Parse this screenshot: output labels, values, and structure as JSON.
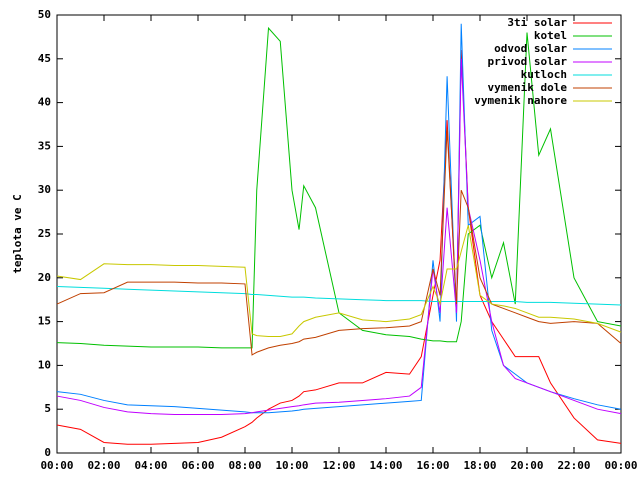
{
  "chart_data": {
    "type": "line",
    "y_label": "teplota ve C",
    "x": [
      0,
      1,
      2,
      3,
      4,
      5,
      6,
      7,
      8,
      8.3,
      8.5,
      9,
      9.5,
      10,
      10.3,
      10.5,
      11,
      12,
      13,
      14,
      15,
      15.5,
      16,
      16.3,
      16.6,
      17,
      17.2,
      17.5,
      18,
      18.5,
      19,
      19.5,
      20,
      20.5,
      21,
      22,
      23,
      24
    ],
    "xlim": [
      0,
      24
    ],
    "xticks": [
      {
        "value": 0,
        "label": "00:00"
      },
      {
        "value": 2,
        "label": "02:00"
      },
      {
        "value": 4,
        "label": "04:00"
      },
      {
        "value": 6,
        "label": "06:00"
      },
      {
        "value": 8,
        "label": "08:00"
      },
      {
        "value": 10,
        "label": "10:00"
      },
      {
        "value": 12,
        "label": "12:00"
      },
      {
        "value": 14,
        "label": "14:00"
      },
      {
        "value": 16,
        "label": "16:00"
      },
      {
        "value": 18,
        "label": "18:00"
      },
      {
        "value": 20,
        "label": "20:00"
      },
      {
        "value": 22,
        "label": "22:00"
      },
      {
        "value": 24,
        "label": "00:00"
      }
    ],
    "ylim": [
      0,
      50
    ],
    "yticks": [
      0,
      5,
      10,
      15,
      20,
      25,
      30,
      35,
      40,
      45,
      50
    ],
    "legend": "top-right",
    "series": [
      {
        "name": "3ti solar",
        "color": "#ff0000",
        "values": [
          3.2,
          2.7,
          1.2,
          1.0,
          1.0,
          1.1,
          1.2,
          1.8,
          3,
          3.5,
          4,
          5,
          5.7,
          6,
          6.5,
          7,
          7.2,
          8,
          8,
          9.2,
          9,
          11,
          18,
          22,
          38,
          16,
          46,
          28,
          18,
          15,
          13,
          11,
          11,
          11,
          8,
          4,
          1.5,
          1.1
        ]
      },
      {
        "name": "kotel",
        "color": "#00c000",
        "values": [
          12.6,
          12.5,
          12.3,
          12.2,
          12.1,
          12.1,
          12.1,
          12.0,
          12.0,
          12,
          30,
          48.5,
          47,
          30,
          25.5,
          30.5,
          28,
          16,
          14,
          13.5,
          13.3,
          13,
          12.8,
          12.8,
          12.7,
          12.7,
          15,
          25,
          26,
          20,
          24,
          17,
          48,
          34,
          37,
          20,
          15,
          14.5
        ]
      },
      {
        "name": "odvod solar",
        "color": "#0080ff",
        "values": [
          7,
          6.7,
          6,
          5.5,
          5.4,
          5.3,
          5.1,
          4.9,
          4.7,
          4.6,
          4.6,
          4.6,
          4.7,
          4.8,
          4.9,
          5,
          5.1,
          5.3,
          5.5,
          5.7,
          5.9,
          6,
          22,
          15,
          43,
          15,
          49,
          26,
          27,
          14,
          10,
          9,
          8,
          7.5,
          7,
          6.2,
          5.5,
          5
        ]
      },
      {
        "name": "privod solar",
        "color": "#c000ff",
        "values": [
          6.5,
          6,
          5.2,
          4.7,
          4.5,
          4.4,
          4.4,
          4.4,
          4.5,
          4.6,
          4.7,
          4.9,
          5.1,
          5.3,
          5.4,
          5.5,
          5.7,
          5.8,
          6,
          6.2,
          6.5,
          7.5,
          21,
          16,
          28,
          16,
          45,
          28,
          22,
          15,
          10,
          8.5,
          8,
          7.5,
          7,
          6,
          5,
          4.5
        ]
      },
      {
        "name": "kutloch",
        "color": "#00dddd",
        "values": [
          19,
          18.9,
          18.8,
          18.7,
          18.6,
          18.5,
          18.4,
          18.3,
          18.2,
          18.1,
          18.1,
          18,
          17.9,
          17.8,
          17.8,
          17.8,
          17.7,
          17.6,
          17.5,
          17.4,
          17.4,
          17.4,
          17.3,
          17.3,
          17.3,
          17.3,
          17.3,
          17.3,
          17.3,
          17.3,
          17.3,
          17.3,
          17.2,
          17.2,
          17.2,
          17.1,
          17,
          16.9
        ]
      },
      {
        "name": "vymenik dole",
        "color": "#c04000",
        "values": [
          17,
          18.2,
          18.3,
          19.5,
          19.5,
          19.5,
          19.4,
          19.4,
          19.3,
          11.2,
          11.5,
          12,
          12.3,
          12.5,
          12.7,
          13,
          13.2,
          14,
          14.2,
          14.3,
          14.5,
          15,
          21,
          18,
          37,
          17,
          30,
          28,
          20,
          17,
          16.5,
          16,
          15.5,
          15,
          14.8,
          15,
          14.8,
          12.5
        ]
      },
      {
        "name": "vymenik nahore",
        "color": "#c8c800",
        "values": [
          20.2,
          19.8,
          21.6,
          21.5,
          21.5,
          21.4,
          21.4,
          21.3,
          21.2,
          13.6,
          13.4,
          13.3,
          13.3,
          13.6,
          14.5,
          15,
          15.5,
          16,
          15.2,
          15,
          15.3,
          15.8,
          19,
          17,
          21,
          21,
          23,
          26,
          18,
          17,
          16.8,
          16.5,
          16,
          15.5,
          15.5,
          15.3,
          14.8,
          13.8
        ]
      }
    ]
  }
}
